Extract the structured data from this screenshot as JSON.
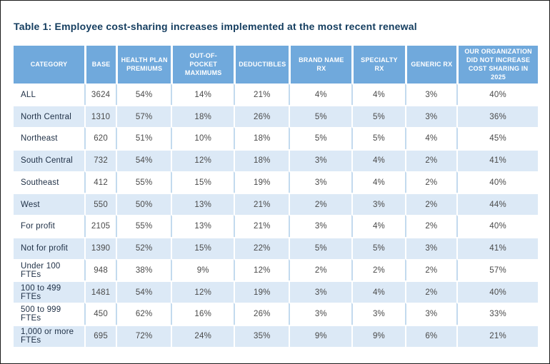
{
  "page": {
    "title": "Table 1: Employee cost-sharing increases implemented at the most recent renewal"
  },
  "colors": {
    "header_bg": "#70a9dc",
    "alt_row_bg": "#dce9f6",
    "grid_line": "#c3daee",
    "title_text": "#143d5f",
    "category_text": "#1e2f45",
    "value_text": "#4a4a4a"
  },
  "table": {
    "headers": [
      "CATEGORY",
      "BASE",
      "HEALTH PLAN PREMIUMS",
      "OUT-OF-POCKET MAXIMUMS",
      "DEDUCTIBLES",
      "BRAND NAME RX",
      "SPECIALTY RX",
      "GENERIC RX",
      "OUR ORGANIZATION DID NOT INCREASE COST SHARING IN 2025"
    ],
    "rows": [
      {
        "category": "ALL",
        "base": "3624",
        "values": [
          "54%",
          "14%",
          "21%",
          "4%",
          "4%",
          "3%",
          "40%"
        ]
      },
      {
        "category": "North Central",
        "base": "1310",
        "values": [
          "57%",
          "18%",
          "26%",
          "5%",
          "5%",
          "3%",
          "36%"
        ]
      },
      {
        "category": "Northeast",
        "base": "620",
        "values": [
          "51%",
          "10%",
          "18%",
          "5%",
          "5%",
          "4%",
          "45%"
        ]
      },
      {
        "category": "South Central",
        "base": "732",
        "values": [
          "54%",
          "12%",
          "18%",
          "3%",
          "4%",
          "2%",
          "41%"
        ]
      },
      {
        "category": "Southeast",
        "base": "412",
        "values": [
          "55%",
          "15%",
          "19%",
          "3%",
          "4%",
          "2%",
          "40%"
        ]
      },
      {
        "category": "West",
        "base": "550",
        "values": [
          "50%",
          "13%",
          "21%",
          "2%",
          "3%",
          "2%",
          "44%"
        ]
      },
      {
        "category": "For profit",
        "base": "2105",
        "values": [
          "55%",
          "13%",
          "21%",
          "3%",
          "4%",
          "2%",
          "40%"
        ]
      },
      {
        "category": "Not for profit",
        "base": "1390",
        "values": [
          "52%",
          "15%",
          "22%",
          "5%",
          "5%",
          "3%",
          "41%"
        ]
      },
      {
        "category": "Under 100 FTEs",
        "base": "948",
        "values": [
          "38%",
          "9%",
          "12%",
          "2%",
          "2%",
          "2%",
          "57%"
        ]
      },
      {
        "category": "100 to 499 FTEs",
        "base": "1481",
        "values": [
          "54%",
          "12%",
          "19%",
          "3%",
          "4%",
          "2%",
          "40%"
        ]
      },
      {
        "category": "500 to 999 FTEs",
        "base": "450",
        "values": [
          "62%",
          "16%",
          "26%",
          "3%",
          "3%",
          "3%",
          "33%"
        ]
      },
      {
        "category": "1,000 or more FTEs",
        "base": "695",
        "values": [
          "72%",
          "24%",
          "35%",
          "9%",
          "9%",
          "6%",
          "21%"
        ]
      }
    ]
  }
}
